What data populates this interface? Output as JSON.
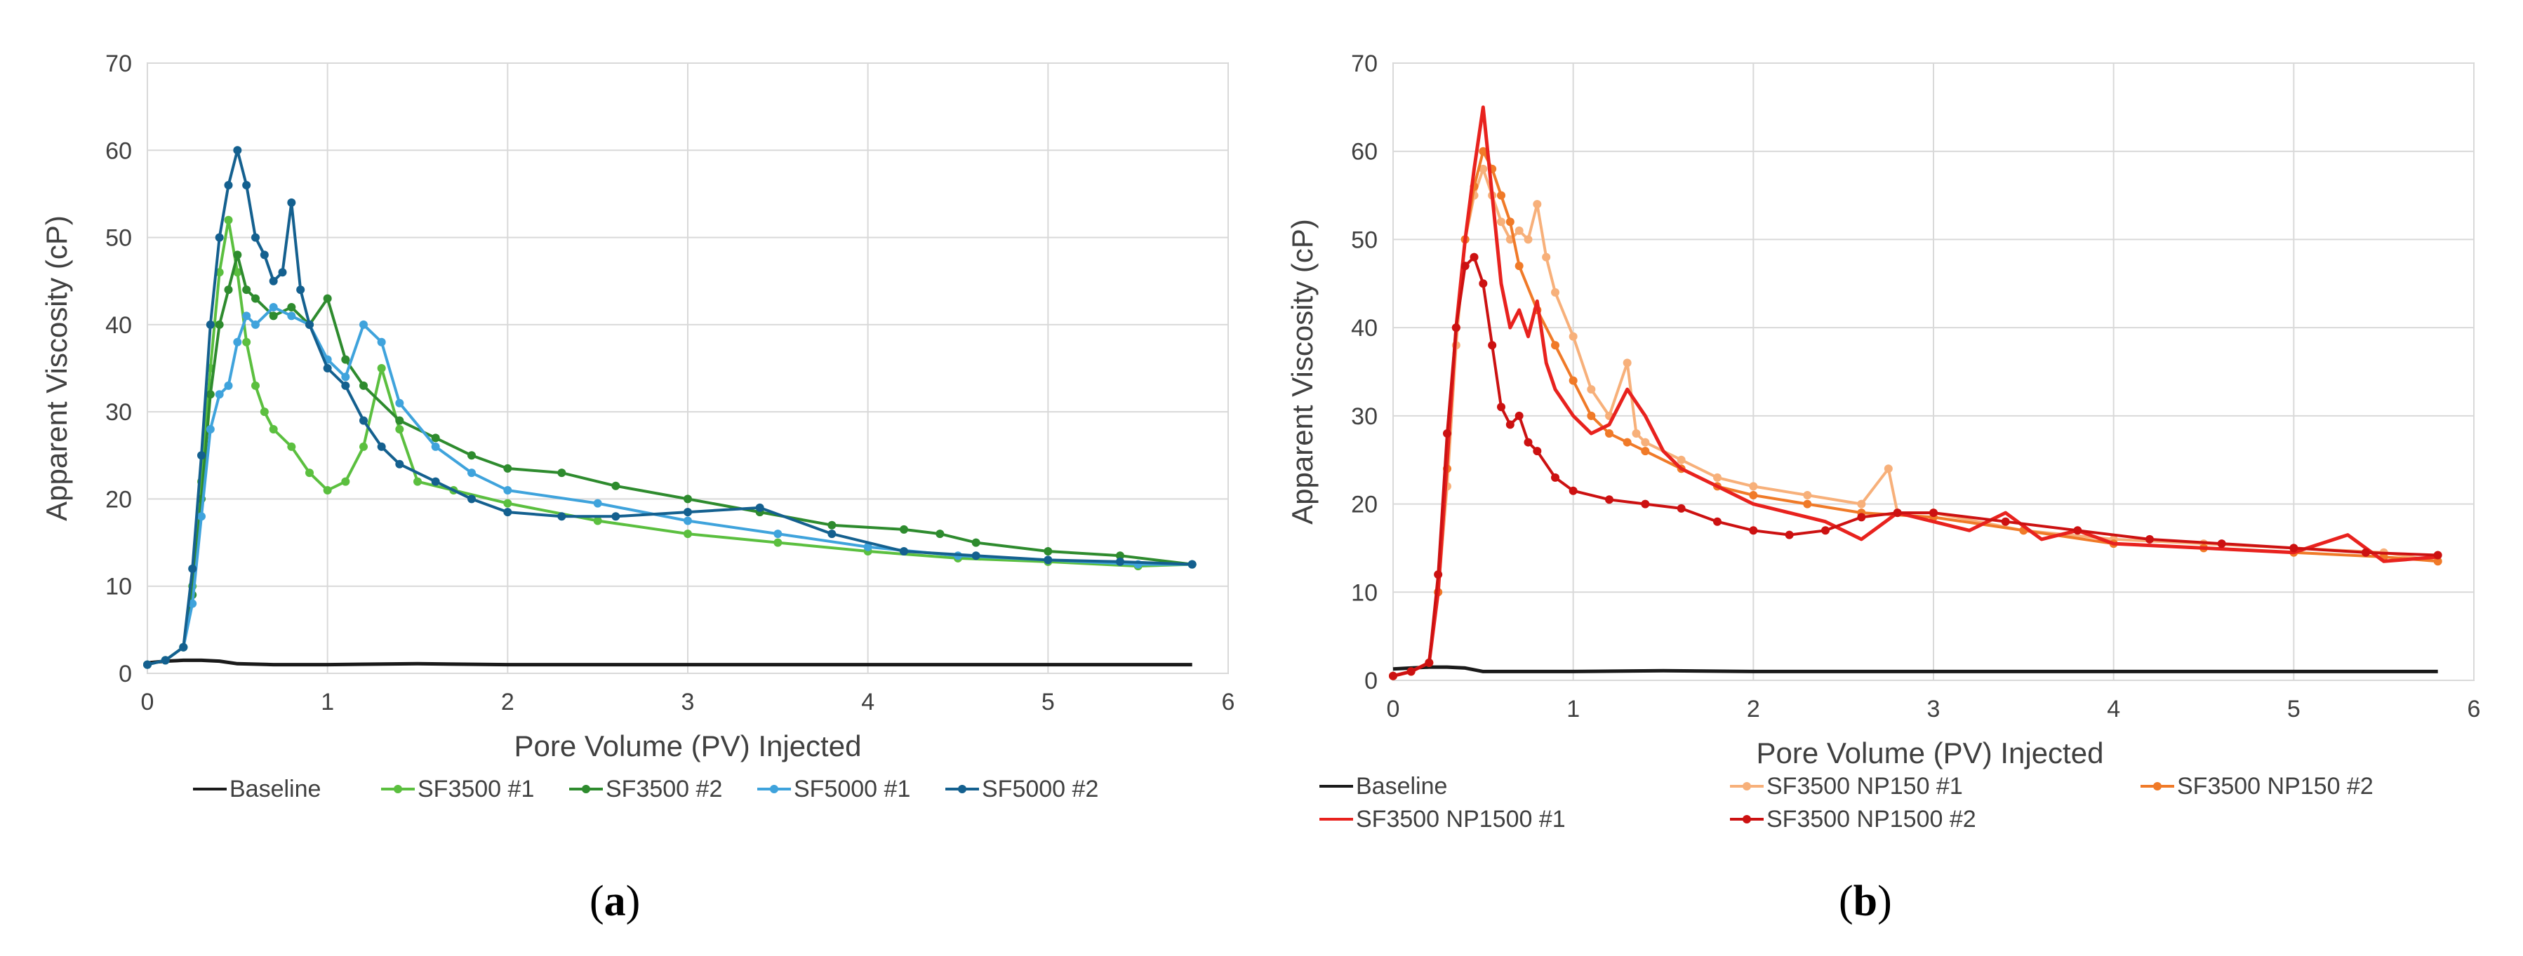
{
  "chart_data": [
    {
      "type": "line",
      "panel_label": "(a)",
      "panel_open": "(",
      "panel_letter": "a",
      "panel_close": ")",
      "xlabel": "Pore Volume (PV) Injected",
      "ylabel": "Apparent Viscosity (cP)",
      "xlim": [
        0,
        6
      ],
      "ylim": [
        0,
        70
      ],
      "xticks": [
        0,
        1,
        2,
        3,
        4,
        5,
        6
      ],
      "yticks": [
        0,
        10,
        20,
        30,
        40,
        50,
        60,
        70
      ],
      "grid": true,
      "legend_position": "bottom",
      "series": [
        {
          "name": "Baseline",
          "color": "#1a1a1a",
          "marker": false,
          "x": [
            0,
            0.1,
            0.2,
            0.3,
            0.4,
            0.5,
            0.7,
            1,
            1.5,
            2,
            3,
            4,
            5,
            5.8
          ],
          "y": [
            1.2,
            1.4,
            1.5,
            1.5,
            1.4,
            1.1,
            1.0,
            1.0,
            1.1,
            1.0,
            1.0,
            1.0,
            1.0,
            1.0
          ]
        },
        {
          "name": "SF3500 #1",
          "color": "#5bbf3f",
          "marker": true,
          "x": [
            0,
            0.1,
            0.2,
            0.25,
            0.3,
            0.35,
            0.4,
            0.45,
            0.5,
            0.55,
            0.6,
            0.65,
            0.7,
            0.8,
            0.9,
            1.0,
            1.1,
            1.2,
            1.3,
            1.4,
            1.5,
            1.7,
            2.0,
            2.5,
            3.0,
            3.5,
            4.0,
            4.5,
            5.0,
            5.5,
            5.8
          ],
          "y": [
            1,
            1.5,
            3,
            10,
            22,
            35,
            46,
            52,
            46,
            38,
            33,
            30,
            28,
            26,
            23,
            21,
            22,
            26,
            35,
            28,
            22,
            21,
            19.5,
            17.5,
            16,
            15,
            14,
            13.2,
            12.8,
            12.3,
            12.5
          ]
        },
        {
          "name": "SF3500 #2",
          "color": "#2e8b2e",
          "marker": true,
          "x": [
            0,
            0.1,
            0.2,
            0.25,
            0.3,
            0.35,
            0.4,
            0.45,
            0.5,
            0.55,
            0.6,
            0.7,
            0.8,
            0.9,
            1.0,
            1.1,
            1.2,
            1.4,
            1.6,
            1.8,
            2.0,
            2.3,
            2.6,
            3.0,
            3.4,
            3.8,
            4.2,
            4.4,
            4.6,
            5.0,
            5.4,
            5.8
          ],
          "y": [
            1,
            1.5,
            3,
            9,
            20,
            32,
            40,
            44,
            48,
            44,
            43,
            41,
            42,
            40,
            43,
            36,
            33,
            29,
            27,
            25,
            23.5,
            23,
            21.5,
            20,
            18.5,
            17,
            16.5,
            16,
            15,
            14,
            13.5,
            12.5
          ]
        },
        {
          "name": "SF5000 #1",
          "color": "#3fa3dc",
          "marker": true,
          "x": [
            0,
            0.1,
            0.2,
            0.25,
            0.3,
            0.35,
            0.4,
            0.45,
            0.5,
            0.55,
            0.6,
            0.7,
            0.8,
            0.9,
            1.0,
            1.1,
            1.2,
            1.3,
            1.4,
            1.6,
            1.8,
            2.0,
            2.5,
            3.0,
            3.5,
            4.0,
            4.5,
            5.0,
            5.5,
            5.8
          ],
          "y": [
            1,
            1.5,
            3,
            8,
            18,
            28,
            32,
            33,
            38,
            41,
            40,
            42,
            41,
            40,
            36,
            34,
            40,
            38,
            31,
            26,
            23,
            21,
            19.5,
            17.5,
            16,
            14.5,
            13.5,
            13,
            12.5,
            12.5
          ]
        },
        {
          "name": "SF5000 #2",
          "color": "#14608f",
          "marker": true,
          "x": [
            0,
            0.1,
            0.2,
            0.25,
            0.3,
            0.35,
            0.4,
            0.45,
            0.5,
            0.55,
            0.6,
            0.65,
            0.7,
            0.75,
            0.8,
            0.85,
            0.9,
            1.0,
            1.1,
            1.2,
            1.3,
            1.4,
            1.6,
            1.8,
            2.0,
            2.3,
            2.6,
            3.0,
            3.4,
            3.8,
            4.2,
            4.6,
            5.0,
            5.4,
            5.8
          ],
          "y": [
            1,
            1.5,
            3,
            12,
            25,
            40,
            50,
            56,
            60,
            56,
            50,
            48,
            45,
            46,
            54,
            44,
            40,
            35,
            33,
            29,
            26,
            24,
            22,
            20,
            18.5,
            18,
            18,
            18.5,
            19,
            16,
            14,
            13.5,
            13,
            12.8,
            12.5
          ]
        }
      ]
    },
    {
      "type": "line",
      "panel_label": "(b)",
      "panel_open": "(",
      "panel_letter": "b",
      "panel_close": ")",
      "xlabel": "Pore Volume (PV) Injected",
      "ylabel": "Apparent Viscosity (cP)",
      "xlim": [
        0,
        6
      ],
      "ylim": [
        0,
        70
      ],
      "xticks": [
        0,
        1,
        2,
        3,
        4,
        5,
        6
      ],
      "yticks": [
        0,
        10,
        20,
        30,
        40,
        50,
        60,
        70
      ],
      "grid": true,
      "legend_position": "bottom",
      "series": [
        {
          "name": "Baseline",
          "color": "#1a1a1a",
          "marker": false,
          "x": [
            0,
            0.1,
            0.2,
            0.3,
            0.4,
            0.5,
            0.7,
            1,
            1.5,
            2,
            3,
            4,
            5,
            5.8
          ],
          "y": [
            1.3,
            1.4,
            1.5,
            1.5,
            1.4,
            1.0,
            1.0,
            1.0,
            1.1,
            1.0,
            1.0,
            1.0,
            1.0,
            1.0
          ]
        },
        {
          "name": "SF3500 NP150 #1",
          "color": "#f7b07a",
          "marker": true,
          "x": [
            0,
            0.1,
            0.2,
            0.25,
            0.3,
            0.35,
            0.4,
            0.45,
            0.5,
            0.55,
            0.6,
            0.65,
            0.7,
            0.75,
            0.8,
            0.85,
            0.9,
            1.0,
            1.1,
            1.2,
            1.3,
            1.35,
            1.4,
            1.6,
            1.8,
            2.0,
            2.3,
            2.6,
            2.75,
            2.8,
            3.0,
            3.5,
            4.0,
            4.5,
            5.0,
            5.5,
            5.8
          ],
          "y": [
            0.5,
            1,
            2,
            10,
            22,
            38,
            50,
            55,
            58,
            55,
            52,
            50,
            51,
            50,
            54,
            48,
            44,
            39,
            33,
            30,
            36,
            28,
            27,
            25,
            23,
            22,
            21,
            20,
            24,
            19,
            19,
            17,
            16,
            15.5,
            15,
            14.5,
            13.5
          ]
        },
        {
          "name": "SF3500 NP150 #2",
          "color": "#f07a28",
          "marker": true,
          "x": [
            0,
            0.1,
            0.2,
            0.25,
            0.3,
            0.35,
            0.4,
            0.45,
            0.5,
            0.55,
            0.6,
            0.65,
            0.7,
            0.8,
            0.9,
            1.0,
            1.1,
            1.2,
            1.3,
            1.4,
            1.6,
            1.8,
            2.0,
            2.3,
            2.6,
            3.0,
            3.5,
            4.0,
            4.5,
            5.0,
            5.5,
            5.8
          ],
          "y": [
            0.5,
            1,
            2,
            10,
            24,
            40,
            50,
            56,
            60,
            58,
            55,
            52,
            47,
            42,
            38,
            34,
            30,
            28,
            27,
            26,
            24,
            22,
            21,
            20,
            19,
            18.5,
            17,
            15.5,
            15,
            14.5,
            14,
            13.5
          ]
        },
        {
          "name": "SF3500 NP1500 #1",
          "color": "#e8221e",
          "marker": false,
          "x": [
            0,
            0.1,
            0.2,
            0.25,
            0.3,
            0.35,
            0.4,
            0.45,
            0.5,
            0.55,
            0.6,
            0.65,
            0.7,
            0.75,
            0.8,
            0.85,
            0.9,
            1.0,
            1.1,
            1.2,
            1.3,
            1.4,
            1.5,
            1.6,
            1.8,
            2.0,
            2.2,
            2.4,
            2.6,
            2.8,
            3.0,
            3.2,
            3.4,
            3.6,
            3.8,
            4.0,
            4.5,
            5.0,
            5.3,
            5.5,
            5.8
          ],
          "y": [
            0.5,
            1,
            2,
            10,
            25,
            40,
            50,
            58,
            65,
            55,
            45,
            40,
            42,
            39,
            43,
            36,
            33,
            30,
            28,
            29,
            33,
            30,
            26,
            24,
            22,
            20,
            19,
            18,
            16,
            19,
            18,
            17,
            19,
            16,
            17,
            15.5,
            15,
            14.5,
            16.5,
            13.5,
            14
          ]
        },
        {
          "name": "SF3500 NP1500 #2",
          "color": "#cc1111",
          "marker": true,
          "x": [
            0,
            0.1,
            0.2,
            0.25,
            0.3,
            0.35,
            0.4,
            0.45,
            0.5,
            0.55,
            0.6,
            0.65,
            0.7,
            0.75,
            0.8,
            0.9,
            1.0,
            1.2,
            1.4,
            1.6,
            1.8,
            2.0,
            2.2,
            2.4,
            2.6,
            2.8,
            3.0,
            3.4,
            3.8,
            4.2,
            4.6,
            5.0,
            5.4,
            5.8
          ],
          "y": [
            0.5,
            1,
            2,
            12,
            28,
            40,
            47,
            48,
            45,
            38,
            31,
            29,
            30,
            27,
            26,
            23,
            21.5,
            20.5,
            20,
            19.5,
            18,
            17,
            16.5,
            17,
            18.5,
            19,
            19,
            18,
            17,
            16,
            15.5,
            15,
            14.5,
            14.2
          ]
        }
      ]
    }
  ]
}
